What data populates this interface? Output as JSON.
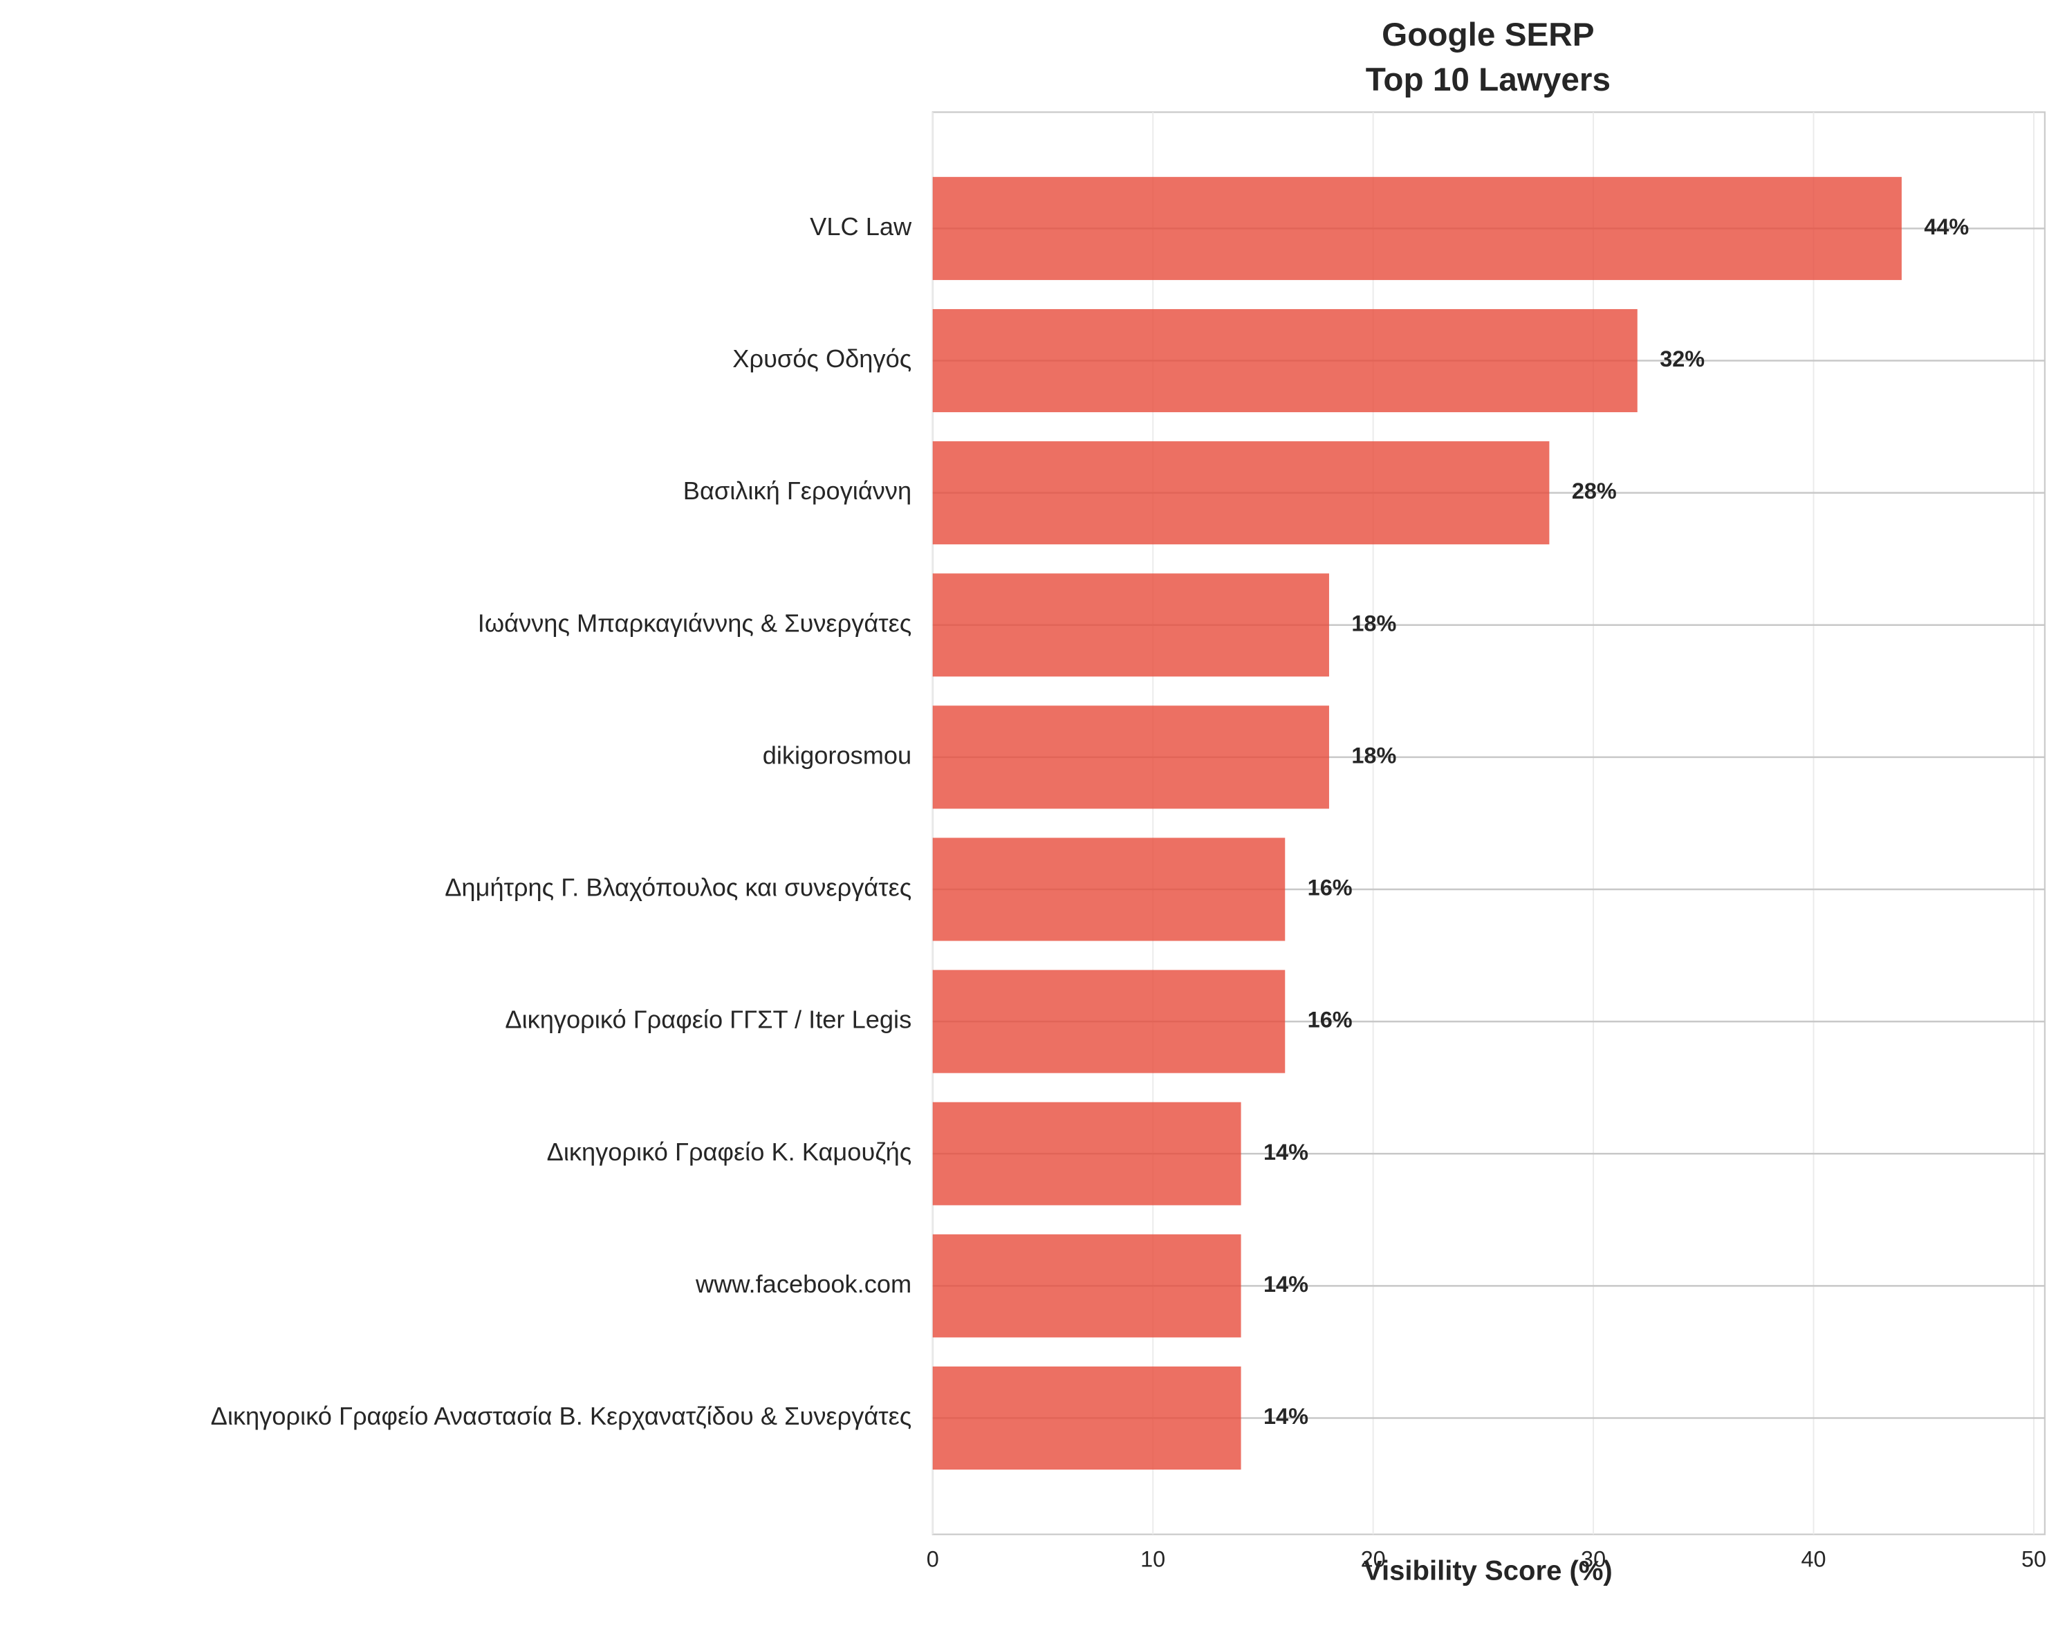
{
  "chart_data": {
    "type": "barh",
    "title": [
      "Google SERP",
      "Top 10 Lawyers"
    ],
    "x_label": "Visibility Score (%)",
    "categories": [
      "VLC Law",
      "Χρυσός Οδηγός",
      "Βασιλική Γερογιάννη",
      "Ιωάννης Μπαρκαγιάννης & Συνεργάτες",
      "dikigorosmou",
      "Δημήτρης Γ. Βλαχόπουλος και συνεργάτες",
      "Δικηγορικό Γραφείο ΓΓΣΤ / Iter Legis",
      "Δικηγορικό Γραφείο Κ. Καμουζής",
      "www.facebook.com",
      "Δικηγορικό Γραφείο Αναστασία Β. Κερχανατζίδου & Συνεργάτες"
    ],
    "values": [
      44,
      32,
      28,
      18,
      18,
      16,
      16,
      14,
      14,
      14
    ],
    "value_labels": [
      "44%",
      "32%",
      "28%",
      "18%",
      "18%",
      "16%",
      "16%",
      "14%",
      "14%",
      "14%"
    ],
    "color": "#e74c3c",
    "xlim": [
      0,
      50.5
    ],
    "xticks": [
      0,
      10,
      20,
      30,
      40,
      50
    ],
    "grid": true
  }
}
